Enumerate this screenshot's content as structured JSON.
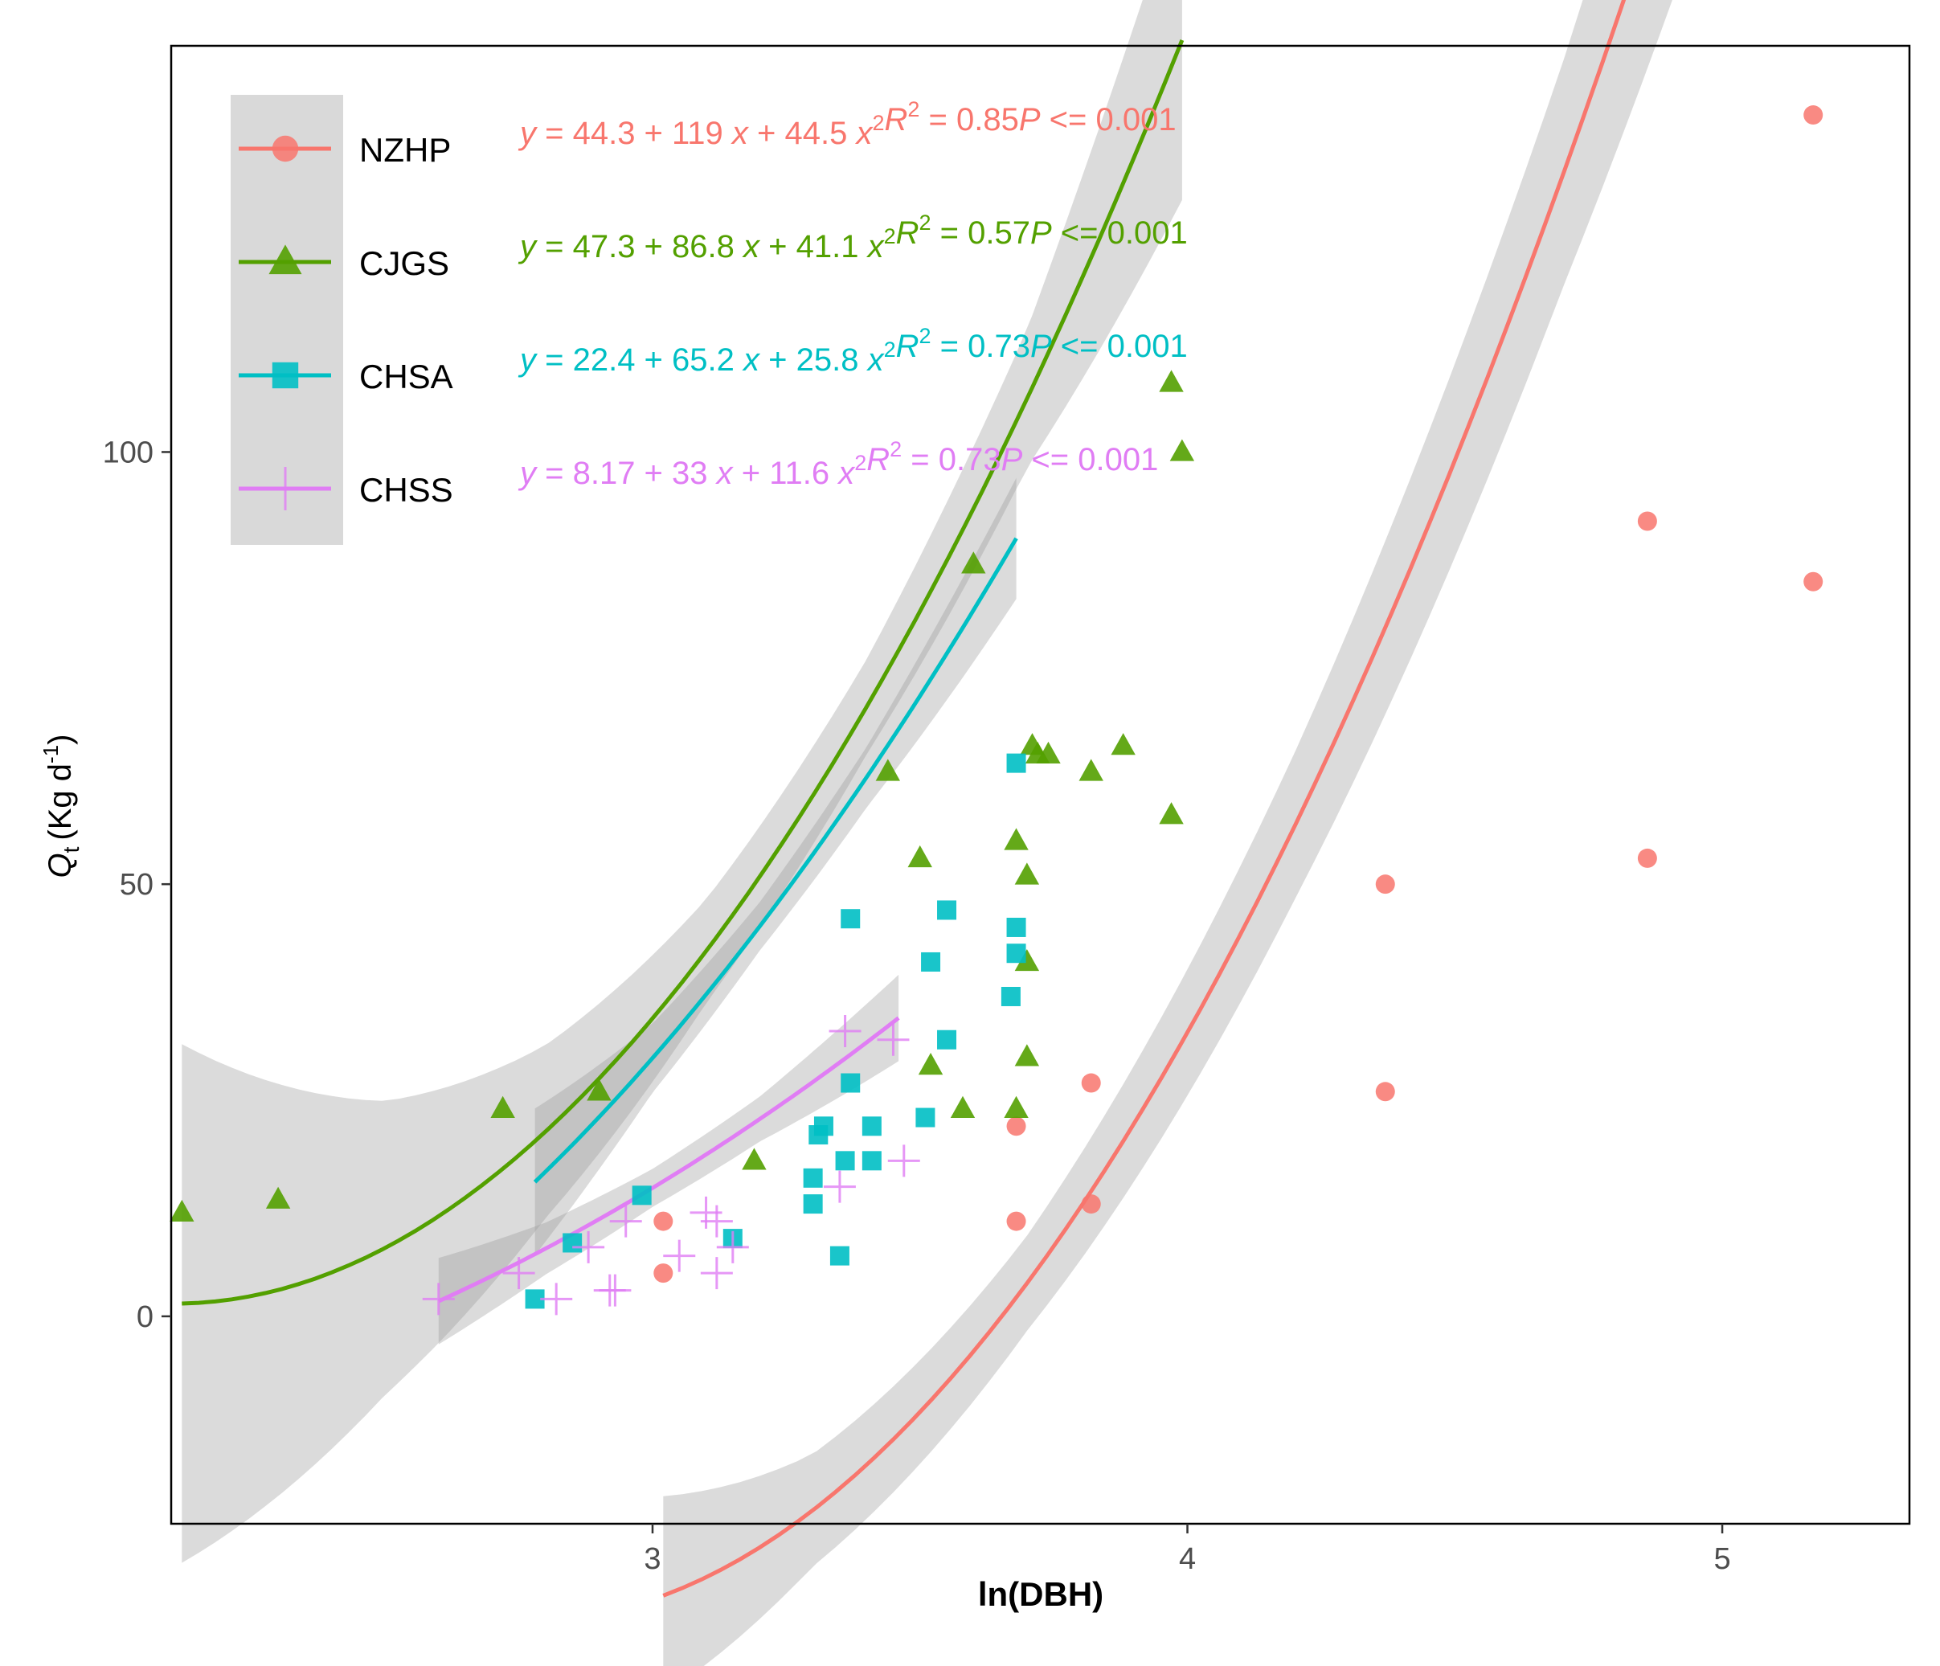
{
  "chart_data": {
    "type": "scatter",
    "title": "",
    "xlabel": "ln(DBH)",
    "ylabel": "Q",
    "ylabel_subscript": "t",
    "ylabel_units_open": "(Kg d",
    "ylabel_units_sup": "-1",
    "ylabel_units_close": ")",
    "xlim": [
      2.1,
      5.35
    ],
    "ylim": [
      -24,
      147
    ],
    "x_ticks": [
      3,
      4,
      5
    ],
    "x_tick_labels": [
      "3",
      "4",
      "5"
    ],
    "y_ticks": [
      0,
      50,
      100
    ],
    "y_tick_labels": [
      "0",
      "50",
      "100"
    ],
    "grid": false,
    "legend_position": "top-left",
    "series": [
      {
        "name": "NZHP",
        "color": "#F8766D",
        "marker": "circle",
        "x": [
          3.02,
          3.02,
          3.68,
          3.68,
          3.82,
          3.82,
          4.37,
          4.37,
          4.86,
          4.86,
          5.17,
          5.17
        ],
        "y": [
          11,
          5,
          22,
          11,
          27,
          13,
          50,
          26,
          92,
          53,
          139,
          85
        ],
        "fit": {
          "a": 44.3,
          "b": 119,
          "c": 44.5,
          "xc": 4.1,
          "xmin": 3.02,
          "xmax": 5.17,
          "band": [
            [
              3.02,
              11.5
            ],
            [
              3.3,
              6.5
            ],
            [
              3.7,
              5.5
            ],
            [
              4.2,
              8.5
            ],
            [
              4.7,
              13
            ],
            [
              5.17,
              22
            ]
          ]
        },
        "equation": {
          "y": "y",
          "eq": " = 44.3 + 119 ",
          "x": "x",
          "plus": " + 44.5 ",
          "x2": "x",
          "sup": "2",
          "r2_label": "R",
          "r2_sup": "2",
          "r2_value": " = 0.85",
          "p_label": "P",
          "p_value": " <= 0.001"
        }
      },
      {
        "name": "CJGS",
        "color": "#53A000",
        "marker": "triangle",
        "x": [
          2.12,
          2.3,
          2.72,
          2.9,
          3.19,
          3.44,
          3.5,
          3.52,
          3.58,
          3.6,
          3.68,
          3.68,
          3.7,
          3.7,
          3.7,
          3.71,
          3.72,
          3.74,
          3.82,
          3.88,
          3.97,
          3.97,
          3.99
        ],
        "y": [
          12,
          13.5,
          24,
          26,
          18,
          63,
          53,
          29,
          24,
          87,
          24,
          55,
          51,
          30,
          41,
          66,
          65,
          65,
          63,
          66,
          58,
          108,
          100
        ],
        "fit": {
          "a": 47.3,
          "b": 86.8,
          "c": 41.1,
          "xc": 3.16,
          "xmin": 2.12,
          "xmax": 3.99,
          "band": [
            [
              2.12,
              30
            ],
            [
              2.5,
              17
            ],
            [
              2.8,
              10
            ],
            [
              3.1,
              6
            ],
            [
              3.4,
              5.5
            ],
            [
              3.7,
              8
            ],
            [
              3.99,
              18.5
            ]
          ]
        },
        "equation": {
          "y": "y",
          "eq": " = 47.3 + 86.8 ",
          "x": "x",
          "plus": " + 41.1 ",
          "x2": "x",
          "sup": "2",
          "r2_label": "R",
          "r2_sup": "2",
          "r2_value": " = 0.57",
          "p_label": "P",
          "p_value": " <= 0.001"
        }
      },
      {
        "name": "CHSA",
        "color": "#00BFC4",
        "marker": "square",
        "x": [
          2.78,
          2.85,
          2.98,
          3.15,
          3.3,
          3.3,
          3.31,
          3.32,
          3.35,
          3.36,
          3.37,
          3.37,
          3.41,
          3.41,
          3.51,
          3.52,
          3.55,
          3.55,
          3.67,
          3.68,
          3.68,
          3.68
        ],
        "y": [
          2,
          8.5,
          14,
          9,
          13,
          16,
          21,
          22,
          7,
          18,
          27,
          46,
          22,
          18,
          23,
          41,
          32,
          47,
          37,
          45,
          42,
          64
        ],
        "fit": {
          "a": 22.4,
          "b": 65.2,
          "c": 25.8,
          "xc": 2.89,
          "xmin": 2.78,
          "xmax": 3.68,
          "band": [
            [
              2.78,
              8.5
            ],
            [
              3.0,
              4.0
            ],
            [
              3.2,
              2.8
            ],
            [
              3.4,
              3.5
            ],
            [
              3.68,
              7
            ]
          ]
        },
        "equation": {
          "y": "y",
          "eq": " = 22.4 + 65.2 ",
          "x": "x",
          "plus": " + 25.8 ",
          "x2": "x",
          "sup": "2",
          "r2_label": "R",
          "r2_sup": "2",
          "r2_value": " = 0.73",
          "p_label": "P",
          "p_value": " <= 0.001"
        }
      },
      {
        "name": "CHSS",
        "color": "#E07DF4",
        "marker": "plus",
        "x": [
          2.6,
          2.75,
          2.82,
          2.88,
          2.92,
          2.93,
          2.95,
          3.05,
          3.1,
          3.12,
          3.12,
          3.15,
          3.35,
          3.36,
          3.45,
          3.47
        ],
        "y": [
          2,
          5,
          2,
          8,
          3,
          3,
          11,
          7,
          12,
          5,
          11,
          8,
          15,
          33,
          32,
          18
        ],
        "fit": {
          "a": 8.17,
          "b": 33,
          "c": 11.6,
          "xc": 2.81,
          "xmin": 2.6,
          "xmax": 3.46,
          "band": [
            [
              2.6,
              5
            ],
            [
              2.8,
              3.0
            ],
            [
              3.0,
              2.2
            ],
            [
              3.2,
              2.6
            ],
            [
              3.46,
              5
            ]
          ]
        },
        "equation": {
          "y": "y",
          "eq": " = 8.17 + 33 ",
          "x": "x",
          "plus": " + 11.6 ",
          "x2": "x",
          "sup": "2",
          "r2_label": "R",
          "r2_sup": "2",
          "r2_value": " = 0.73",
          "p_label": "P",
          "p_value": " <= 0.001"
        }
      }
    ]
  }
}
